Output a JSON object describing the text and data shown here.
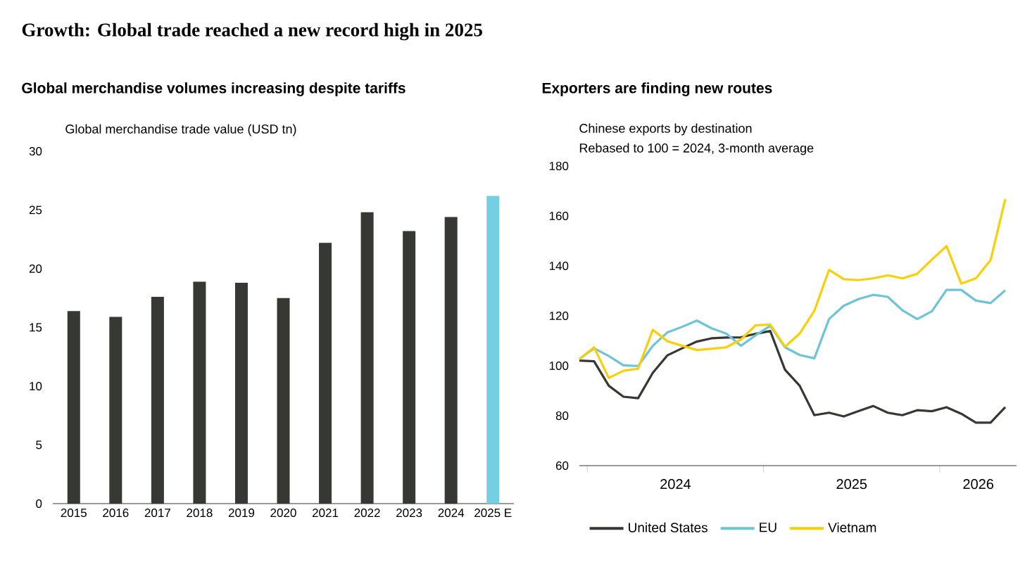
{
  "chart_data": [
    {
      "type": "bar",
      "title": "Growth: Global trade reached a new record high in 2025",
      "subtitle": "Global merchandise volumes increasing despite tariffs",
      "ylabel": "Global merchandise trade value (USD tn)",
      "categories": [
        "2015",
        "2016",
        "2017",
        "2018",
        "2019",
        "2020",
        "2021",
        "2022",
        "2023",
        "2024",
        "2025 E"
      ],
      "values": [
        16.4,
        15.9,
        17.6,
        18.9,
        18.8,
        17.5,
        22.2,
        24.8,
        23.2,
        24.4,
        26.2
      ],
      "colors": [
        "#363833",
        "#363833",
        "#363833",
        "#363833",
        "#363833",
        "#363833",
        "#363833",
        "#363833",
        "#363833",
        "#363833",
        "#75cfe3"
      ],
      "ylim": [
        0,
        30
      ],
      "yticks": [
        0,
        5,
        10,
        15,
        20,
        25,
        30
      ],
      "legend": false
    },
    {
      "type": "line",
      "title": "Exporters are finding new routes",
      "ylabel": "Chinese exports by destination",
      "annotations": [
        "Rebased to 100 = 2024, 3-month average"
      ],
      "x": [
        "2023-12-15",
        "2024-01-15",
        "2024-02-15",
        "2024-03-15",
        "2024-04-15",
        "2024-05-15",
        "2024-06-15",
        "2024-07-15",
        "2024-08-15",
        "2024-09-15",
        "2024-10-15",
        "2024-11-15",
        "2024-12-15",
        "2025-01-15",
        "2025-02-15",
        "2025-03-15",
        "2025-04-15",
        "2025-05-15",
        "2025-06-15",
        "2025-07-15",
        "2025-08-15",
        "2025-09-15",
        "2025-10-15",
        "2025-11-15",
        "2025-12-15",
        "2026-01-15",
        "2026-02-15",
        "2026-03-15",
        "2026-04-15",
        "2026-05-15"
      ],
      "series": [
        {
          "name": "United States",
          "color": "#363833",
          "values": [
            102.1,
            101.8,
            92.0,
            87.6,
            87.0,
            97.2,
            104.2,
            107.0,
            109.7,
            111.0,
            111.3,
            111.4,
            112.8,
            113.9,
            98.4,
            92.0,
            80.2,
            81.2,
            79.7,
            81.8,
            83.9,
            81.2,
            80.2,
            82.2,
            81.8,
            83.4,
            80.8,
            77.2,
            77.2,
            83.4
          ]
        },
        {
          "name": "EU",
          "color": "#6fc3d6",
          "values": [
            102.7,
            107.0,
            103.9,
            100.2,
            99.9,
            108.0,
            113.4,
            115.6,
            118.1,
            115.0,
            112.9,
            108.0,
            112.2,
            116.0,
            107.4,
            104.3,
            103.0,
            118.7,
            124.0,
            126.7,
            128.4,
            127.6,
            122.2,
            118.7,
            121.8,
            130.4,
            130.4,
            126.1,
            125.1,
            130.2
          ]
        },
        {
          "name": "Vietnam",
          "color": "#f9cf0a",
          "values": [
            102.7,
            107.4,
            95.1,
            98.0,
            98.8,
            114.4,
            109.8,
            108.0,
            106.3,
            106.8,
            107.4,
            110.5,
            116.2,
            116.5,
            107.6,
            112.9,
            122.0,
            138.4,
            134.7,
            134.3,
            135.0,
            136.2,
            135.0,
            136.8,
            142.5,
            147.9,
            132.9,
            135.0,
            142.3,
            166.7
          ]
        }
      ],
      "xlim": [
        "2023-12-15",
        "2026-06-08"
      ],
      "xticks": [
        {
          "value": "2024-01-01",
          "label": null
        },
        {
          "value": "2024-07-01",
          "label": "2024"
        },
        {
          "value": "2025-01-01",
          "label": null
        },
        {
          "value": "2025-07-01",
          "label": "2025"
        },
        {
          "value": "2026-01-01",
          "label": null
        },
        {
          "value": "2026-03-20",
          "label": "2026"
        }
      ],
      "ylim": [
        60,
        180
      ],
      "yticks": [
        60,
        80,
        100,
        120,
        140,
        160,
        180
      ],
      "legend": "bottom",
      "line_style": "solid",
      "marker": "none"
    }
  ]
}
